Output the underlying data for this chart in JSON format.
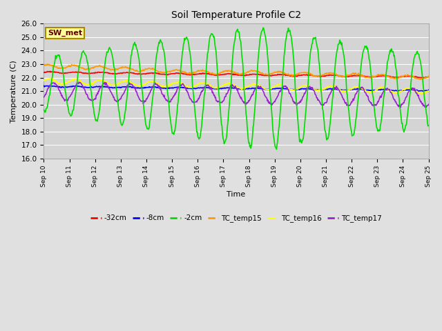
{
  "title": "Soil Temperature Profile C2",
  "xlabel": "Time",
  "ylabel": "Temperature (C)",
  "ylim": [
    16.0,
    26.0
  ],
  "yticks": [
    16.0,
    17.0,
    18.0,
    19.0,
    20.0,
    21.0,
    22.0,
    23.0,
    24.0,
    25.0,
    26.0
  ],
  "bg_color": "#e0e0e0",
  "plot_bg_color": "#d4d4d4",
  "grid_color": "#ffffff",
  "annotation_box": {
    "text": "SW_met",
    "facecolor": "#ffff99",
    "edgecolor": "#aa8800",
    "text_color": "#660000"
  },
  "series": [
    {
      "label": "-32cm",
      "color": "#ff0000",
      "lw": 1.2
    },
    {
      "label": "-8cm",
      "color": "#0000ff",
      "lw": 1.2
    },
    {
      "label": "-2cm",
      "color": "#00dd00",
      "lw": 1.2
    },
    {
      "label": "TC_temp15",
      "color": "#ff9900",
      "lw": 1.2
    },
    {
      "label": "TC_temp16",
      "color": "#ffff00",
      "lw": 1.2
    },
    {
      "label": "TC_temp17",
      "color": "#9922cc",
      "lw": 1.2
    }
  ],
  "x_tick_labels": [
    "Sep 10",
    "Sep 11",
    "Sep 12",
    "Sep 13",
    "Sep 14",
    "Sep 15",
    "Sep 16",
    "Sep 17",
    "Sep 18",
    "Sep 19",
    "Sep 20",
    "Sep 21",
    "Sep 22",
    "Sep 23",
    "Sep 24",
    "Sep 25"
  ],
  "n_days": 15,
  "n_points": 720
}
